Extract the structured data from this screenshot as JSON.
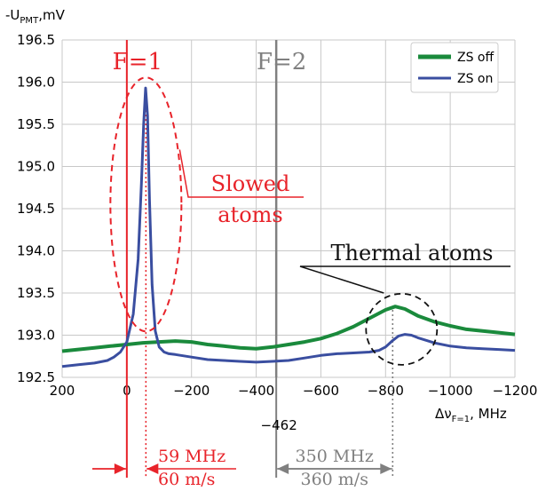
{
  "chart_data": {
    "type": "line",
    "ylabel": "-U",
    "ylabel_sub": "PMT",
    "ylabel_unit": ",mV",
    "xlabel": "Δν",
    "xlabel_sub": "F=1",
    "xlabel_unit": ", MHz",
    "xlim": [
      200,
      -1200
    ],
    "ylim": [
      192.5,
      196.5
    ],
    "xticks": [
      200,
      0,
      -200,
      -400,
      -600,
      -800,
      -1000,
      -1200
    ],
    "xtick_labels": [
      "200",
      "0",
      "−200",
      "−400",
      "−600",
      "−800",
      "−1000",
      "−1200"
    ],
    "yticks": [
      192.5,
      193.0,
      193.5,
      194.0,
      194.5,
      195.0,
      195.5,
      196.0,
      196.5
    ],
    "ytick_labels": [
      "192.5",
      "193.0",
      "193.5",
      "194.0",
      "194.5",
      "195.0",
      "195.5",
      "196.0",
      "196.5"
    ],
    "legend_position": "top-right",
    "series": [
      {
        "name": "ZS off",
        "color": "#1a8a3c",
        "x": [
          200,
          150,
          100,
          50,
          0,
          -50,
          -100,
          -150,
          -200,
          -250,
          -300,
          -350,
          -400,
          -450,
          -500,
          -550,
          -600,
          -650,
          -700,
          -750,
          -800,
          -830,
          -860,
          -900,
          -950,
          -1000,
          -1050,
          -1100,
          -1150,
          -1200
        ],
        "y": [
          192.81,
          192.83,
          192.85,
          192.87,
          192.89,
          192.91,
          192.92,
          192.93,
          192.92,
          192.89,
          192.87,
          192.85,
          192.84,
          192.86,
          192.89,
          192.92,
          192.96,
          193.02,
          193.1,
          193.2,
          193.3,
          193.34,
          193.31,
          193.23,
          193.16,
          193.11,
          193.07,
          193.05,
          193.03,
          193.01
        ]
      },
      {
        "name": "ZS on",
        "color": "#3a4ea0",
        "x": [
          200,
          150,
          100,
          60,
          40,
          20,
          0,
          -20,
          -35,
          -45,
          -52,
          -58,
          -64,
          -70,
          -78,
          -88,
          -100,
          -115,
          -130,
          -150,
          -200,
          -250,
          -300,
          -350,
          -400,
          -450,
          -500,
          -550,
          -600,
          -650,
          -700,
          -750,
          -780,
          -800,
          -820,
          -840,
          -860,
          -880,
          -900,
          -950,
          -1000,
          -1050,
          -1100,
          -1150,
          -1200
        ],
        "y": [
          192.63,
          192.65,
          192.67,
          192.7,
          192.74,
          192.8,
          192.92,
          193.25,
          193.9,
          194.8,
          195.5,
          195.93,
          195.6,
          194.6,
          193.6,
          193.05,
          192.86,
          192.8,
          192.78,
          192.77,
          192.74,
          192.71,
          192.7,
          192.69,
          192.68,
          192.69,
          192.7,
          192.73,
          192.76,
          192.78,
          192.79,
          192.8,
          192.82,
          192.86,
          192.93,
          192.99,
          193.01,
          193.0,
          192.97,
          192.91,
          192.87,
          192.85,
          192.84,
          192.83,
          192.82
        ]
      }
    ]
  },
  "annotations": {
    "f1_label": "F=1",
    "f2_label": "F=2",
    "f1_x": 0,
    "f2_x": -462,
    "f2_tick_label": "−462",
    "slowed_label_line1": "Slowed",
    "slowed_label_line2": "atoms",
    "slowed_peak_x": -59,
    "thermal_label": "Thermal atoms",
    "thermal_peak_x": -822,
    "slowed_freq": "59 MHz",
    "slowed_vel": "60 m/s",
    "thermal_freq": "350 MHz",
    "thermal_vel": "360 m/s"
  },
  "colors": {
    "red": "#e8232a",
    "gray": "#808080",
    "green": "#1a8a3c",
    "blue": "#3a4ea0"
  }
}
